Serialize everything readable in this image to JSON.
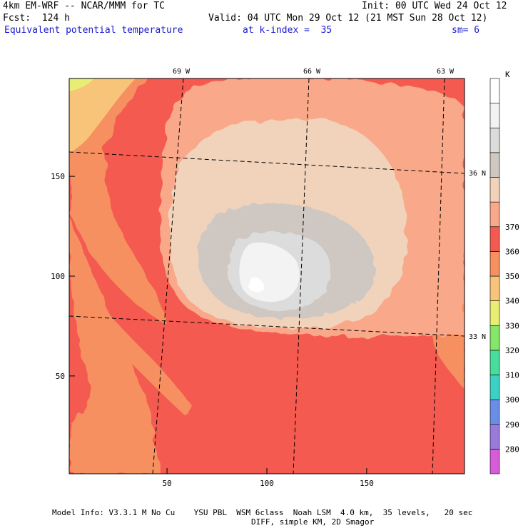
{
  "header": {
    "model_line": "4km EM-WRF -- NCAR/MMM for TC",
    "init_line": "Init: 00 UTC Wed 24 Oct 12",
    "fcst_line": "Fcst:  124 h",
    "valid_line": "Valid: 04 UTC Mon 29 Oct 12 (21 MST Sun 28 Oct 12)",
    "field_name": "Equivalent potential temperature",
    "level_text": "at k-index =  35",
    "smooth_text": "sm= 6"
  },
  "map": {
    "x_ticks": [
      {
        "label": "50",
        "value": 50
      },
      {
        "label": "100",
        "value": 100
      },
      {
        "label": "150",
        "value": 150
      }
    ],
    "y_ticks": [
      {
        "label": "150",
        "value": 150
      },
      {
        "label": "100",
        "value": 100
      },
      {
        "label": "50",
        "value": 50
      }
    ],
    "grid_range": {
      "x": [
        1,
        199
      ],
      "y": [
        1,
        199
      ]
    },
    "longitude_labels": [
      "69 W",
      "66 W",
      "63 W"
    ],
    "latitude_labels": [
      "36 N",
      "33 N"
    ],
    "storm_center_grid": {
      "x": 100,
      "y": 102
    }
  },
  "colorbar": {
    "unit": "K",
    "levels": [
      280,
      290,
      300,
      310,
      320,
      330,
      340,
      350,
      360,
      370
    ],
    "labels": [
      "280",
      "290",
      "300",
      "310",
      "320",
      "330",
      "340",
      "350",
      "360",
      "370"
    ],
    "colors": [
      "#d65cd8",
      "#9a7bdb",
      "#6a8ee8",
      "#3bd1c5",
      "#49dd9b",
      "#86e66a",
      "#e8ee74",
      "#f7c47a",
      "#f79060",
      "#f45a4f",
      "#f9a88a",
      "#f1d3bb",
      "#cfc8c2",
      "#dcdcdc",
      "#f3f3f3",
      "#ffffff"
    ]
  },
  "footer": {
    "line1": "Model Info: V3.3.1 M No Cu    YSU PBL  WSM 6class  Noah LSM  4.0 km,  35 levels,   20 sec",
    "line2": "DIFF, simple KM, 2D Smagor"
  }
}
